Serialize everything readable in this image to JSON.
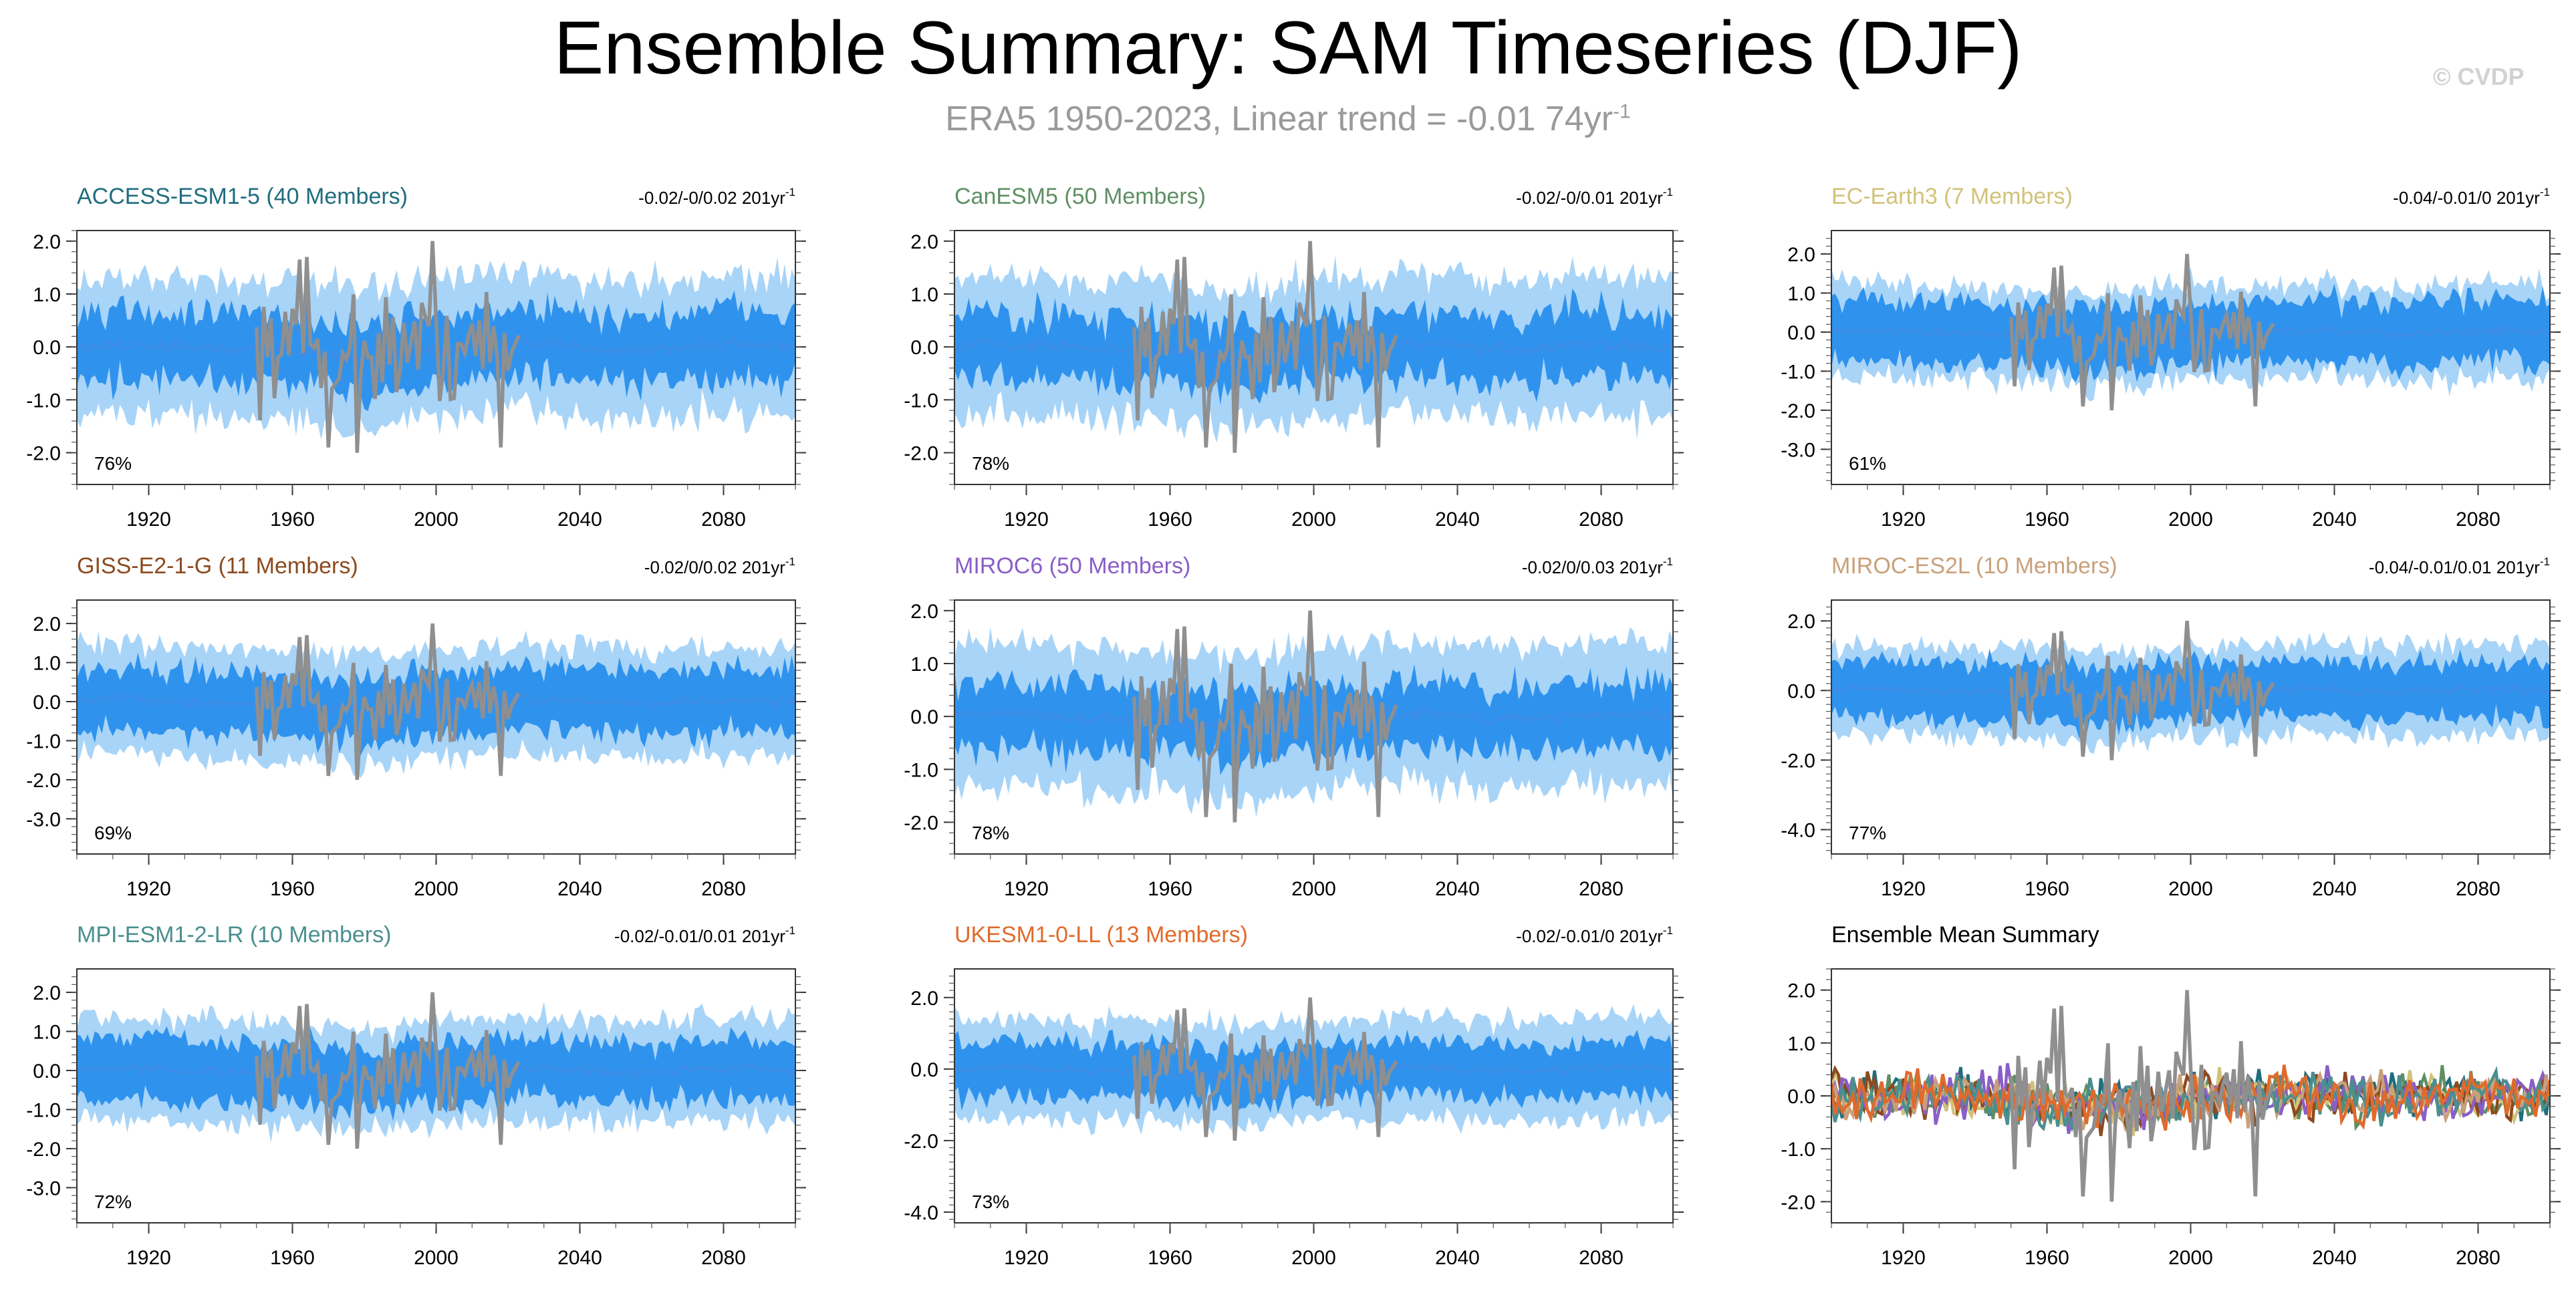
{
  "title": "Ensemble Summary: SAM Timeseries (DJF)",
  "subtitle": {
    "text": "ERA5 1950-2023, Linear trend = -0.01 74yr",
    "sup": "-1"
  },
  "watermark": "© CVDP",
  "colors": {
    "outer_band": "#a8d4f8",
    "inner_band": "#2f93ee",
    "ensemble_mean": "#3a8ee8",
    "observations": "#8f8f8f"
  },
  "chart_data": [
    {
      "type": "area",
      "title": "ACCESS-ESM1-5 (40 Members)",
      "title_color": "#1f6d7e",
      "trend": "-0.02/-0/0.02 201yr",
      "trend_sup": "-1",
      "pct": "76%",
      "xlim": [
        1900,
        2100
      ],
      "ylim": [
        -2.6,
        2.2
      ],
      "yticks": [
        "2.0",
        "1.0",
        "0.0",
        "-1.0",
        "-2.0"
      ],
      "ytick_values": [
        2,
        1,
        0,
        -1,
        -2
      ],
      "xticks": [
        "1920",
        "1960",
        "2000",
        "2040",
        "2080"
      ],
      "xtick_values": [
        1920,
        1960,
        2000,
        2040,
        2080
      ],
      "series_obs": {
        "x_range": [
          1950,
          2023
        ],
        "approx": "observed SAM index, ~-2.0 to 2.0"
      },
      "band_outer_halfwidth": 1.3,
      "band_inner_halfwidth": 0.65
    },
    {
      "type": "area",
      "title": "CanESM5 (50 Members)",
      "title_color": "#5e8f63",
      "trend": "-0.02/-0/0.01 201yr",
      "trend_sup": "-1",
      "pct": "78%",
      "xlim": [
        1900,
        2100
      ],
      "ylim": [
        -2.6,
        2.2
      ],
      "yticks": [
        "2.0",
        "1.0",
        "0.0",
        "-1.0",
        "-2.0"
      ],
      "ytick_values": [
        2,
        1,
        0,
        -1,
        -2
      ],
      "xticks": [
        "1920",
        "1960",
        "2000",
        "2040",
        "2080"
      ],
      "xtick_values": [
        1920,
        1960,
        2000,
        2040,
        2080
      ],
      "series_obs": {
        "x_range": [
          1950,
          2023
        ]
      },
      "band_outer_halfwidth": 1.3,
      "band_inner_halfwidth": 0.6
    },
    {
      "type": "area",
      "title": "EC-Earth3 (7 Members)",
      "title_color": "#d1c27a",
      "trend": "-0.04/-0.01/0 201yr",
      "trend_sup": "-1",
      "pct": "61%",
      "xlim": [
        1900,
        2100
      ],
      "ylim": [
        -3.9,
        2.6
      ],
      "yticks": [
        "2.0",
        "1.0",
        "0.0",
        "-1.0",
        "-2.0",
        "-3.0"
      ],
      "ytick_values": [
        2,
        1,
        0,
        -1,
        -2,
        -3
      ],
      "xticks": [
        "1920",
        "1960",
        "2000",
        "2040",
        "2080"
      ],
      "xtick_values": [
        1920,
        1960,
        2000,
        2040,
        2080
      ],
      "series_obs": {
        "x_range": [
          1950,
          2023
        ]
      },
      "band_outer_halfwidth": 1.2,
      "band_inner_halfwidth": 0.8
    },
    {
      "type": "area",
      "title": "GISS-E2-1-G (11 Members)",
      "title_color": "#8c4a1e",
      "trend": "-0.02/0/0.02 201yr",
      "trend_sup": "-1",
      "pct": "69%",
      "xlim": [
        1900,
        2100
      ],
      "ylim": [
        -3.9,
        2.6
      ],
      "yticks": [
        "2.0",
        "1.0",
        "0.0",
        "-1.0",
        "-2.0",
        "-3.0"
      ],
      "ytick_values": [
        2,
        1,
        0,
        -1,
        -2,
        -3
      ],
      "xticks": [
        "1920",
        "1960",
        "2000",
        "2040",
        "2080"
      ],
      "xtick_values": [
        1920,
        1960,
        2000,
        2040,
        2080
      ],
      "series_obs": {
        "x_range": [
          1950,
          2023
        ]
      },
      "band_outer_halfwidth": 1.4,
      "band_inner_halfwidth": 0.8
    },
    {
      "type": "area",
      "title": "MIROC6 (50 Members)",
      "title_color": "#8a5ec7",
      "trend": "-0.02/0/0.03 201yr",
      "trend_sup": "-1",
      "pct": "78%",
      "xlim": [
        1900,
        2100
      ],
      "ylim": [
        -2.6,
        2.2
      ],
      "yticks": [
        "2.0",
        "1.0",
        "0.0",
        "-1.0",
        "-2.0"
      ],
      "ytick_values": [
        2,
        1,
        0,
        -1,
        -2
      ],
      "xticks": [
        "1920",
        "1960",
        "2000",
        "2040",
        "2080"
      ],
      "xtick_values": [
        1920,
        1960,
        2000,
        2040,
        2080
      ],
      "series_obs": {
        "x_range": [
          1950,
          2023
        ]
      },
      "band_outer_halfwidth": 1.35,
      "band_inner_halfwidth": 0.6
    },
    {
      "type": "area",
      "title": "MIROC-ES2L (10 Members)",
      "title_color": "#c9a07a",
      "trend": "-0.04/-0.01/0.01 201yr",
      "trend_sup": "-1",
      "pct": "77%",
      "xlim": [
        1900,
        2100
      ],
      "ylim": [
        -4.7,
        2.6
      ],
      "yticks": [
        "2.0",
        "0.0",
        "-2.0",
        "-4.0"
      ],
      "ytick_values": [
        2,
        0,
        -2,
        -4
      ],
      "xticks": [
        "1920",
        "1960",
        "2000",
        "2040",
        "2080"
      ],
      "xtick_values": [
        1920,
        1960,
        2000,
        2040,
        2080
      ],
      "series_obs": {
        "x_range": [
          1950,
          2023
        ]
      },
      "band_outer_halfwidth": 1.3,
      "band_inner_halfwidth": 0.8
    },
    {
      "type": "area",
      "title": "MPI-ESM1-2-LR (10 Members)",
      "title_color": "#4a8f8f",
      "trend": "-0.02/-0.01/0.01 201yr",
      "trend_sup": "-1",
      "pct": "72%",
      "xlim": [
        1900,
        2100
      ],
      "ylim": [
        -3.9,
        2.6
      ],
      "yticks": [
        "2.0",
        "1.0",
        "0.0",
        "-1.0",
        "-2.0",
        "-3.0"
      ],
      "ytick_values": [
        2,
        1,
        0,
        -1,
        -2,
        -3
      ],
      "xticks": [
        "1920",
        "1960",
        "2000",
        "2040",
        "2080"
      ],
      "xtick_values": [
        1920,
        1960,
        2000,
        2040,
        2080
      ],
      "series_obs": {
        "x_range": [
          1950,
          2023
        ]
      },
      "band_outer_halfwidth": 1.3,
      "band_inner_halfwidth": 0.75
    },
    {
      "type": "area",
      "title": "UKESM1-0-LL (13 Members)",
      "title_color": "#e06a2c",
      "trend": "-0.02/-0.01/0 201yr",
      "trend_sup": "-1",
      "pct": "73%",
      "xlim": [
        1900,
        2100
      ],
      "ylim": [
        -4.3,
        2.8
      ],
      "yticks": [
        "2.0",
        "0.0",
        "-2.0",
        "-4.0"
      ],
      "ytick_values": [
        2,
        0,
        -2,
        -4
      ],
      "xticks": [
        "1920",
        "1960",
        "2000",
        "2040",
        "2080"
      ],
      "xtick_values": [
        1920,
        1960,
        2000,
        2040,
        2080
      ],
      "series_obs": {
        "x_range": [
          1950,
          2023
        ]
      },
      "band_outer_halfwidth": 1.4,
      "band_inner_halfwidth": 0.75
    },
    {
      "type": "line",
      "title": "Ensemble Mean Summary",
      "title_color": "#000000",
      "trend": "",
      "trend_sup": "",
      "pct": "",
      "xlim": [
        1900,
        2100
      ],
      "ylim": [
        -2.4,
        2.4
      ],
      "yticks": [
        "2.0",
        "1.0",
        "0.0",
        "-1.0",
        "-2.0"
      ],
      "ytick_values": [
        2,
        1,
        0,
        -1,
        -2
      ],
      "xticks": [
        "1920",
        "1960",
        "2000",
        "2040",
        "2080"
      ],
      "xtick_values": [
        1920,
        1960,
        2000,
        2040,
        2080
      ],
      "series": [
        {
          "color": "#1f6d7e"
        },
        {
          "color": "#5e8f63"
        },
        {
          "color": "#d1c27a"
        },
        {
          "color": "#8c4a1e"
        },
        {
          "color": "#8a5ec7"
        },
        {
          "color": "#c9a07a"
        },
        {
          "color": "#4a8f8f"
        },
        {
          "color": "#e06a2c"
        }
      ],
      "series_obs": {
        "x_range": [
          1950,
          2023
        ]
      }
    }
  ]
}
